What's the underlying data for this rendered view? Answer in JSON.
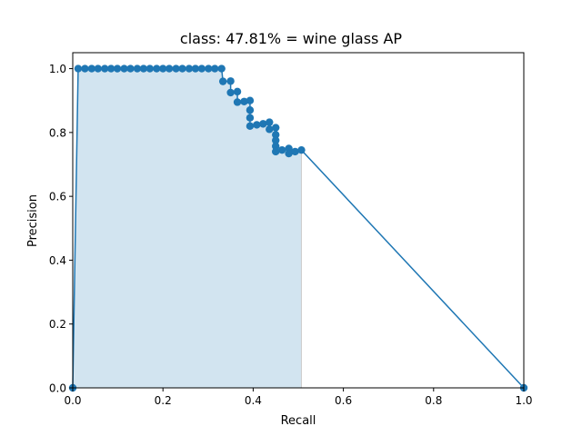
{
  "chart_data": {
    "type": "area",
    "title": "class: 47.81% = wine glass AP",
    "xlabel": "Recall",
    "ylabel": "Precision",
    "xlim": [
      0.0,
      1.0
    ],
    "ylim": [
      0.0,
      1.05
    ],
    "xticks": [
      "0.0",
      "0.2",
      "0.4",
      "0.6",
      "0.8",
      "1.0"
    ],
    "yticks": [
      "0.0",
      "0.2",
      "0.4",
      "0.6",
      "0.8",
      "1.0"
    ],
    "grid": false,
    "legend": "none",
    "colors": {
      "line": "#1f77b4",
      "fill": "#1f77b4",
      "fill_opacity": 0.2
    },
    "series": [
      {
        "points": [
          [
            0.0,
            0.0
          ],
          [
            0.012,
            1.0
          ],
          [
            0.027,
            1.0
          ],
          [
            0.042,
            1.0
          ],
          [
            0.056,
            1.0
          ],
          [
            0.071,
            1.0
          ],
          [
            0.085,
            1.0
          ],
          [
            0.099,
            1.0
          ],
          [
            0.114,
            1.0
          ],
          [
            0.128,
            1.0
          ],
          [
            0.143,
            1.0
          ],
          [
            0.157,
            1.0
          ],
          [
            0.171,
            1.0
          ],
          [
            0.186,
            1.0
          ],
          [
            0.2,
            1.0
          ],
          [
            0.214,
            1.0
          ],
          [
            0.229,
            1.0
          ],
          [
            0.243,
            1.0
          ],
          [
            0.258,
            1.0
          ],
          [
            0.272,
            1.0
          ],
          [
            0.286,
            1.0
          ],
          [
            0.301,
            1.0
          ],
          [
            0.315,
            1.0
          ],
          [
            0.33,
            1.0
          ],
          [
            0.333,
            0.96
          ],
          [
            0.35,
            0.961
          ],
          [
            0.35,
            0.925
          ],
          [
            0.365,
            0.928
          ],
          [
            0.365,
            0.895
          ],
          [
            0.38,
            0.897
          ],
          [
            0.393,
            0.9
          ],
          [
            0.393,
            0.87
          ],
          [
            0.393,
            0.846
          ],
          [
            0.393,
            0.82
          ],
          [
            0.408,
            0.824
          ],
          [
            0.422,
            0.827
          ],
          [
            0.436,
            0.832
          ],
          [
            0.436,
            0.81
          ],
          [
            0.45,
            0.815
          ],
          [
            0.45,
            0.793
          ],
          [
            0.45,
            0.775
          ],
          [
            0.45,
            0.757
          ],
          [
            0.45,
            0.74
          ],
          [
            0.464,
            0.745
          ],
          [
            0.479,
            0.75
          ],
          [
            0.479,
            0.734
          ],
          [
            0.493,
            0.74
          ],
          [
            0.507,
            0.745
          ],
          [
            1.0,
            0.0
          ]
        ]
      }
    ],
    "shaded_region": {
      "x_end": 0.507,
      "points": [
        [
          0.0,
          0.0
        ],
        [
          0.012,
          1.0
        ],
        [
          0.33,
          1.0
        ],
        [
          0.333,
          0.961
        ],
        [
          0.35,
          0.961
        ],
        [
          0.35,
          0.928
        ],
        [
          0.365,
          0.928
        ],
        [
          0.365,
          0.9
        ],
        [
          0.393,
          0.9
        ],
        [
          0.393,
          0.832
        ],
        [
          0.436,
          0.832
        ],
        [
          0.436,
          0.815
        ],
        [
          0.45,
          0.815
        ],
        [
          0.45,
          0.75
        ],
        [
          0.479,
          0.75
        ],
        [
          0.479,
          0.745
        ],
        [
          0.507,
          0.745
        ],
        [
          0.507,
          0.0
        ]
      ]
    }
  }
}
